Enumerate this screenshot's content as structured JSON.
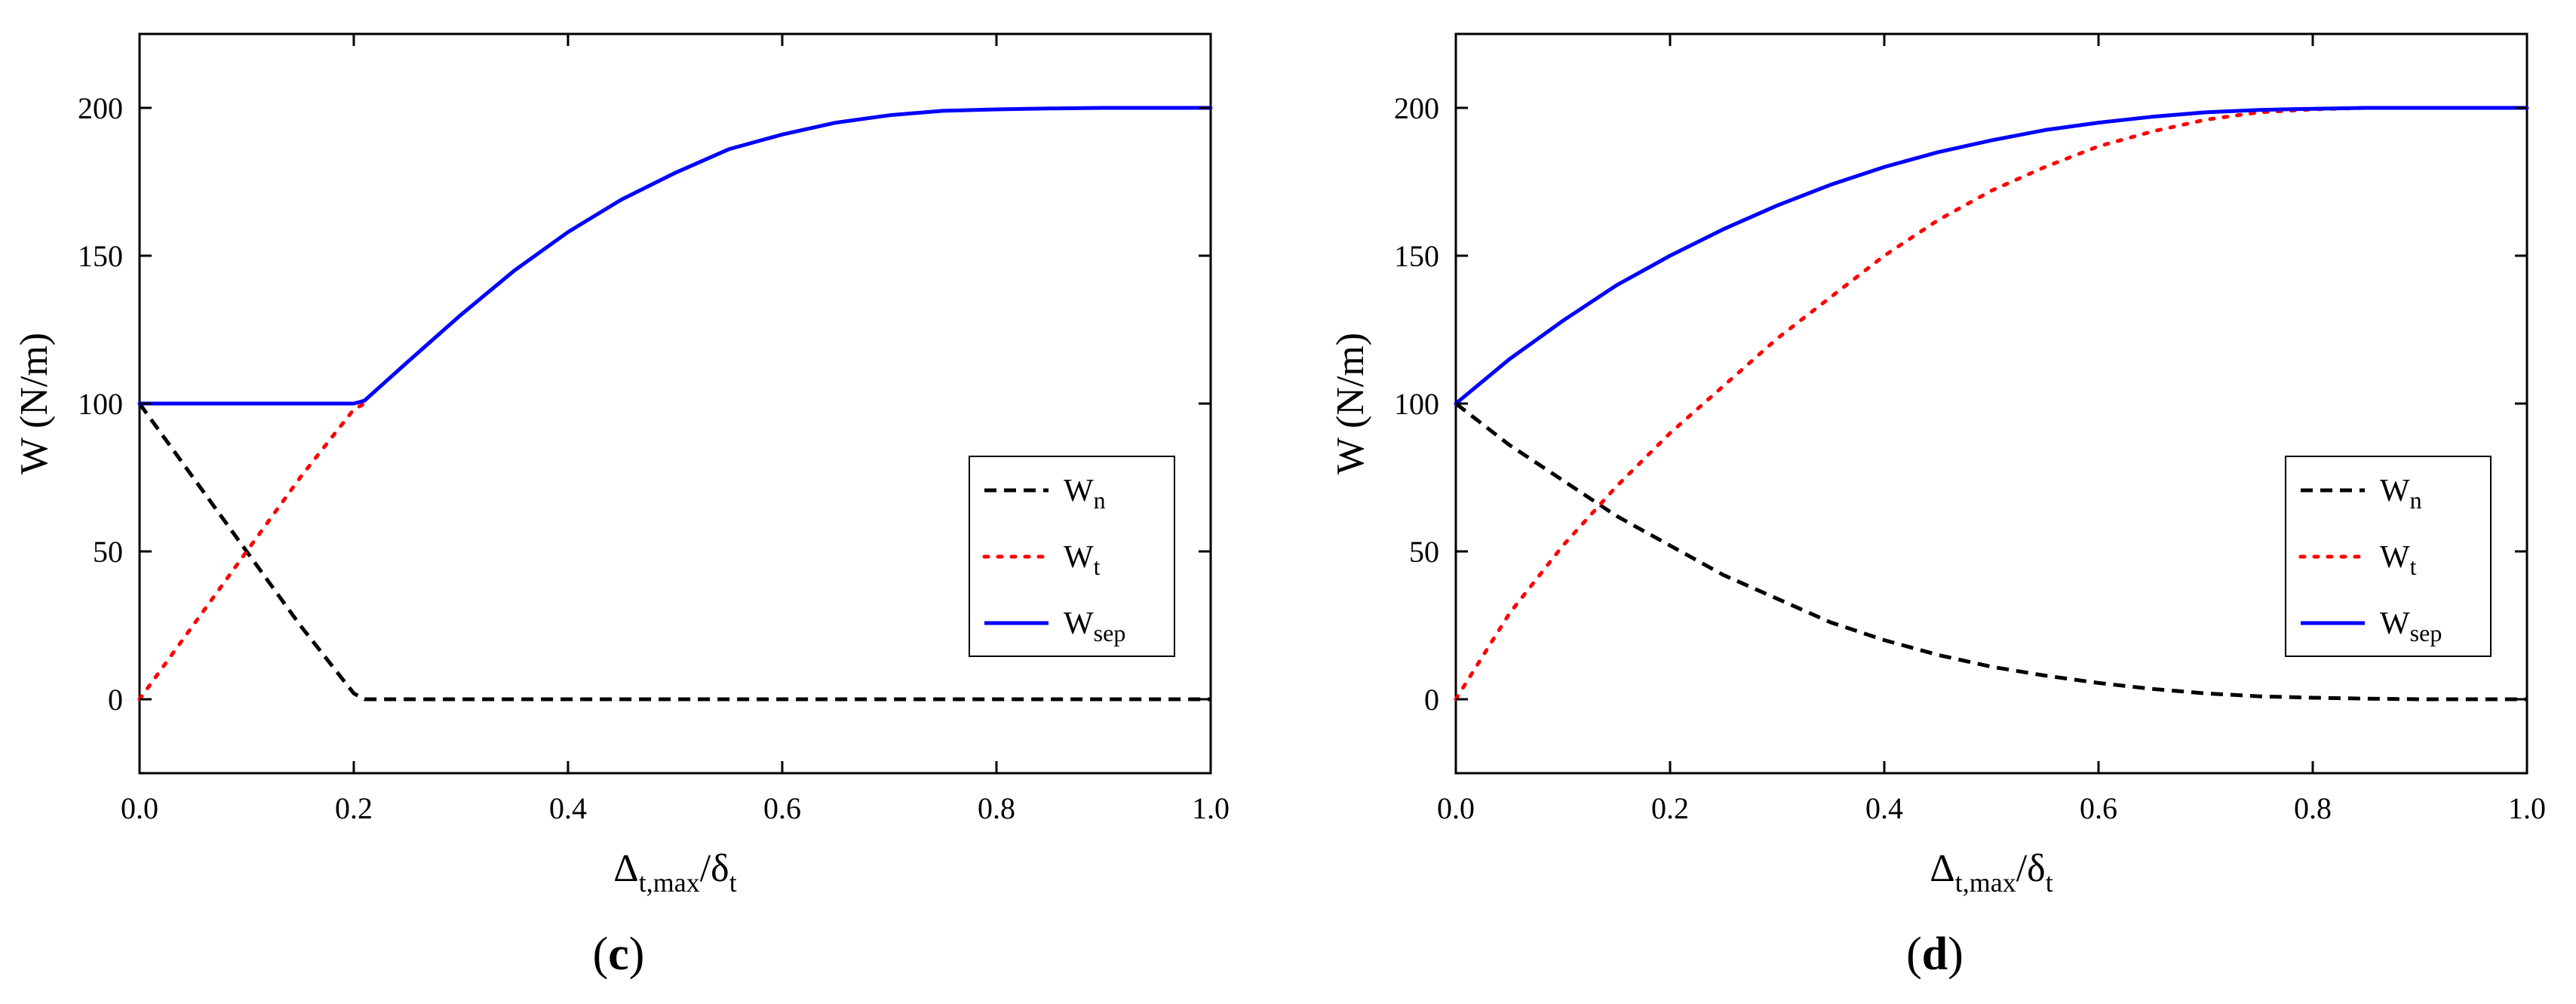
{
  "figure": {
    "colors": {
      "Wn": "#000000",
      "Wt": "#ff0000",
      "Wsep": "#0000ff"
    },
    "line_styles": {
      "Wn": "dashed",
      "Wt": "dotted",
      "Wsep": "solid"
    }
  },
  "chart_data": [
    {
      "type": "line",
      "panel_label": "(c)",
      "panel_letter": "c",
      "xlabel": "Δt,max/δt",
      "ylabel": "W (N/m)",
      "xlim": [
        0,
        1
      ],
      "ylim": [
        -25,
        225
      ],
      "xticks": [
        0,
        0.2,
        0.4,
        0.6,
        0.8,
        1.0
      ],
      "xtick_labels": [
        "0.0",
        "0.2",
        "0.4",
        "0.6",
        "0.8",
        "1.0"
      ],
      "yticks": [
        0,
        50,
        100,
        150,
        200
      ],
      "ytick_labels": [
        "0",
        "50",
        "100",
        "150",
        "200"
      ],
      "legend_position": "lower-right",
      "series": [
        {
          "name": "Wn",
          "legend_main": "W",
          "legend_sub": "n",
          "color": "#000000",
          "style": "dashed",
          "x": [
            0,
            0.05,
            0.1,
            0.15,
            0.2,
            0.21,
            0.4,
            0.6,
            0.8,
            1.0
          ],
          "y": [
            100,
            75,
            50,
            25,
            2,
            0,
            0,
            0,
            0,
            0
          ]
        },
        {
          "name": "Wt",
          "legend_main": "W",
          "legend_sub": "t",
          "color": "#ff0000",
          "style": "dotted",
          "x": [
            0,
            0.05,
            0.1,
            0.15,
            0.2,
            0.21
          ],
          "y": [
            0,
            25,
            50,
            75,
            98,
            100
          ]
        },
        {
          "name": "Wsep",
          "legend_main": "W",
          "legend_sub": "sep",
          "color": "#0000ff",
          "style": "solid",
          "x": [
            0,
            0.1,
            0.2,
            0.21,
            0.25,
            0.3,
            0.35,
            0.4,
            0.45,
            0.5,
            0.55,
            0.6,
            0.65,
            0.7,
            0.75,
            0.8,
            0.85,
            0.9,
            0.95,
            1.0
          ],
          "y": [
            100,
            100,
            100,
            101,
            114,
            130,
            145,
            158,
            169,
            178,
            186,
            191,
            195,
            197.5,
            199,
            199.5,
            199.8,
            200,
            200,
            200
          ]
        }
      ]
    },
    {
      "type": "line",
      "panel_label": "(d)",
      "panel_letter": "d",
      "xlabel": "Δt,max/δt",
      "ylabel": "W (N/m)",
      "xlim": [
        0,
        1
      ],
      "ylim": [
        -25,
        225
      ],
      "xticks": [
        0,
        0.2,
        0.4,
        0.6,
        0.8,
        1.0
      ],
      "xtick_labels": [
        "0.0",
        "0.2",
        "0.4",
        "0.6",
        "0.8",
        "1.0"
      ],
      "yticks": [
        0,
        50,
        100,
        150,
        200
      ],
      "ytick_labels": [
        "0",
        "50",
        "100",
        "150",
        "200"
      ],
      "legend_position": "lower-right",
      "series": [
        {
          "name": "Wn",
          "legend_main": "W",
          "legend_sub": "n",
          "color": "#000000",
          "style": "dashed",
          "x": [
            0,
            0.05,
            0.1,
            0.15,
            0.2,
            0.25,
            0.3,
            0.35,
            0.4,
            0.45,
            0.5,
            0.55,
            0.6,
            0.65,
            0.7,
            0.75,
            0.8,
            0.85,
            0.9,
            0.95,
            1.0
          ],
          "y": [
            100,
            86,
            74,
            62,
            52,
            42,
            34,
            26,
            20,
            15,
            11,
            8,
            5.5,
            3.5,
            2,
            1,
            0.5,
            0.2,
            0,
            0,
            0
          ]
        },
        {
          "name": "Wt",
          "legend_main": "W",
          "legend_sub": "t",
          "color": "#ff0000",
          "style": "dotted",
          "x": [
            0,
            0.05,
            0.1,
            0.15,
            0.2,
            0.25,
            0.3,
            0.35,
            0.4,
            0.45,
            0.5,
            0.55,
            0.6,
            0.65,
            0.7,
            0.75,
            0.8,
            0.85,
            0.9,
            0.95,
            1.0
          ],
          "y": [
            0,
            29,
            52,
            72,
            90,
            106,
            122,
            136,
            150,
            162,
            172,
            180,
            187,
            192,
            196,
            198.5,
            199.5,
            200,
            200,
            200,
            200
          ]
        },
        {
          "name": "Wsep",
          "legend_main": "W",
          "legend_sub": "sep",
          "color": "#0000ff",
          "style": "solid",
          "x": [
            0,
            0.05,
            0.1,
            0.15,
            0.2,
            0.25,
            0.3,
            0.35,
            0.4,
            0.45,
            0.5,
            0.55,
            0.6,
            0.65,
            0.7,
            0.75,
            0.8,
            0.85,
            0.9,
            0.95,
            1.0
          ],
          "y": [
            100,
            115,
            128,
            140,
            150,
            159,
            167,
            174,
            180,
            185,
            189,
            192.5,
            195,
            197,
            198.5,
            199.3,
            199.7,
            200,
            200,
            200,
            200
          ]
        }
      ]
    }
  ]
}
